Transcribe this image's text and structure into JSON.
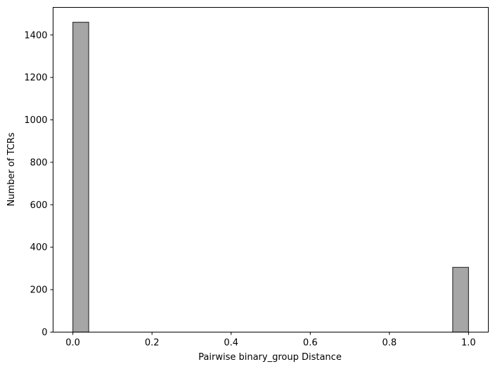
{
  "chart_data": {
    "type": "bar",
    "subtype": "histogram",
    "title": "",
    "xlabel": "Pairwise binary_group Distance",
    "ylabel": "Number of TCRs",
    "xlim": [
      -0.05,
      1.05
    ],
    "ylim": [
      0,
      1530
    ],
    "xticks": [
      0.0,
      0.2,
      0.4,
      0.6,
      0.8,
      1.0
    ],
    "xtick_labels": [
      "0.0",
      "0.2",
      "0.4",
      "0.6",
      "0.8",
      "1.0"
    ],
    "yticks": [
      0,
      200,
      400,
      600,
      800,
      1000,
      1200,
      1400
    ],
    "ytick_labels": [
      "0",
      "200",
      "400",
      "600",
      "800",
      "1000",
      "1200",
      "1400"
    ],
    "bins": [
      {
        "x0": 0.0,
        "x1": 0.04,
        "value": 1460
      },
      {
        "x0": 0.96,
        "x1": 1.0,
        "value": 305
      }
    ],
    "grid": false,
    "bar_color": "#a6a6a6",
    "edge_color": "#3a3a3a"
  }
}
